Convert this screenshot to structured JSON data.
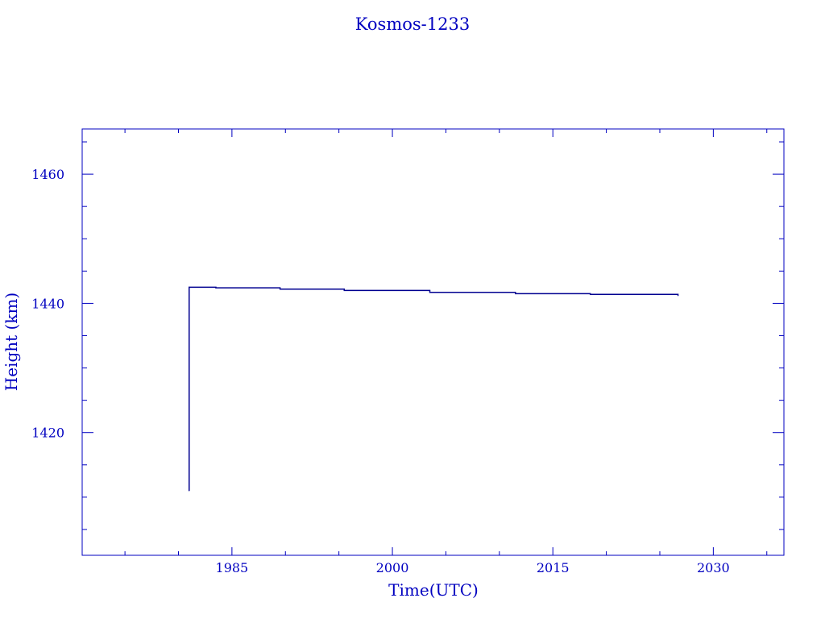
{
  "chart_data": {
    "type": "line",
    "title": "Kosmos-1233",
    "xlabel": "Time(UTC)",
    "ylabel": "Height (km)",
    "xlim": [
      1971,
      2036.6
    ],
    "ylim": [
      1401,
      1467
    ],
    "x_ticks": [
      1985,
      2000,
      2015,
      2030
    ],
    "y_ticks": [
      1420,
      1440,
      1460
    ],
    "grid": false,
    "colors": {
      "axis": "#0000c0",
      "line": "#000090",
      "text": "#0000c0"
    },
    "series": [
      {
        "x": [
          1981.0,
          1981.0,
          1983.5,
          1989.5,
          1995.5,
          2003.5,
          2011.5,
          2018.5,
          2026.7
        ],
        "y": [
          1411,
          1442.5,
          1442.4,
          1442.2,
          1442.0,
          1441.7,
          1441.5,
          1441.4,
          1441.2
        ]
      }
    ]
  }
}
